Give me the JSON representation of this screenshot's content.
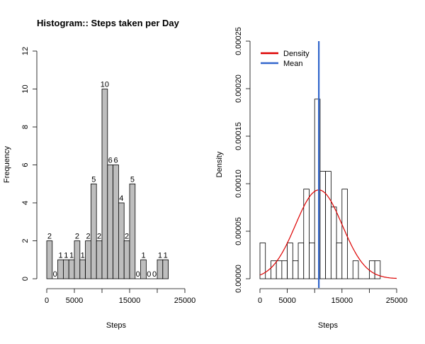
{
  "chart_data": [
    {
      "type": "bar",
      "title": "Histogram:: Steps taken per Day",
      "xlabel": "Steps",
      "ylabel": "Frequency",
      "bin_width": 1000,
      "x_start": 0,
      "xlim": [
        0,
        25000
      ],
      "ylim": [
        0,
        12
      ],
      "xticks": [
        "0",
        "5000",
        "15000",
        "25000"
      ],
      "xtick_values": [
        0,
        5000,
        15000,
        25000
      ],
      "yticks": [
        "0",
        "2",
        "4",
        "6",
        "8",
        "10",
        "12"
      ],
      "ytick_values": [
        0,
        2,
        4,
        6,
        8,
        10,
        12
      ],
      "values": [
        2,
        0,
        1,
        1,
        1,
        2,
        1,
        2,
        5,
        2,
        10,
        6,
        6,
        4,
        2,
        5,
        0,
        1,
        0,
        0,
        1,
        1
      ],
      "bar_color": "#bebebe",
      "grid": false
    },
    {
      "type": "bar",
      "title": "",
      "xlabel": "Steps",
      "ylabel": "Density",
      "bin_width": 1000,
      "x_start": 0,
      "xlim": [
        0,
        25000
      ],
      "ylim": [
        0,
        0.00025
      ],
      "xticks": [
        "0",
        "5000",
        "15000",
        "25000"
      ],
      "xtick_values": [
        0,
        5000,
        15000,
        25000
      ],
      "yticks": [
        "0.00000",
        "0.00005",
        "0.00010",
        "0.00015",
        "0.00020",
        "0.00025"
      ],
      "ytick_values": [
        0,
        5e-05,
        0.0001,
        0.00015,
        0.0002,
        0.00025
      ],
      "values": [
        3.77e-05,
        0,
        1.89e-05,
        1.89e-05,
        1.89e-05,
        3.77e-05,
        1.89e-05,
        3.77e-05,
        9.43e-05,
        3.77e-05,
        0.000189,
        0.000113,
        0.000113,
        7.55e-05,
        3.77e-05,
        9.43e-05,
        0,
        1.89e-05,
        0,
        0,
        1.89e-05,
        1.89e-05
      ],
      "bar_color": "#ffffff",
      "density_curve": {
        "mean": 10766,
        "sd": 4269
      },
      "mean_line": 10766,
      "legend": {
        "position": "top-left",
        "items": [
          {
            "name": "Density",
            "color": "#dd0000"
          },
          {
            "name": "Mean",
            "color": "#3366cc"
          }
        ]
      },
      "grid": false
    }
  ]
}
